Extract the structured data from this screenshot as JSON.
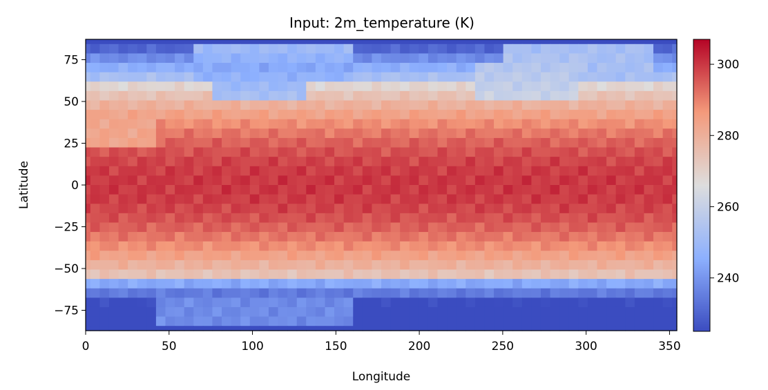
{
  "chart_data": {
    "type": "heatmap",
    "title": "Input: 2m_temperature (K)",
    "xlabel": "Longitude",
    "ylabel": "Latitude",
    "xlim": [
      0,
      354.375
    ],
    "ylim": [
      -87.1875,
      87.1875
    ],
    "x_ticks": [
      0,
      50,
      100,
      150,
      200,
      250,
      300,
      350
    ],
    "x_tick_labels": [
      "0",
      "50",
      "100",
      "150",
      "200",
      "250",
      "300",
      "350"
    ],
    "y_ticks": [
      75,
      50,
      25,
      0,
      -25,
      -50,
      -75
    ],
    "y_tick_labels": [
      "75",
      "50",
      "25",
      "0",
      "−25",
      "−50",
      "−75"
    ],
    "grid_resolution_deg": 5.625,
    "colormap": "coolwarm",
    "colorbar": {
      "vmin": 225,
      "vmax": 307,
      "ticks": [
        240,
        260,
        280,
        300
      ],
      "tick_labels": [
        "240",
        "260",
        "280",
        "300"
      ],
      "placement": "right"
    },
    "grid": false
  }
}
